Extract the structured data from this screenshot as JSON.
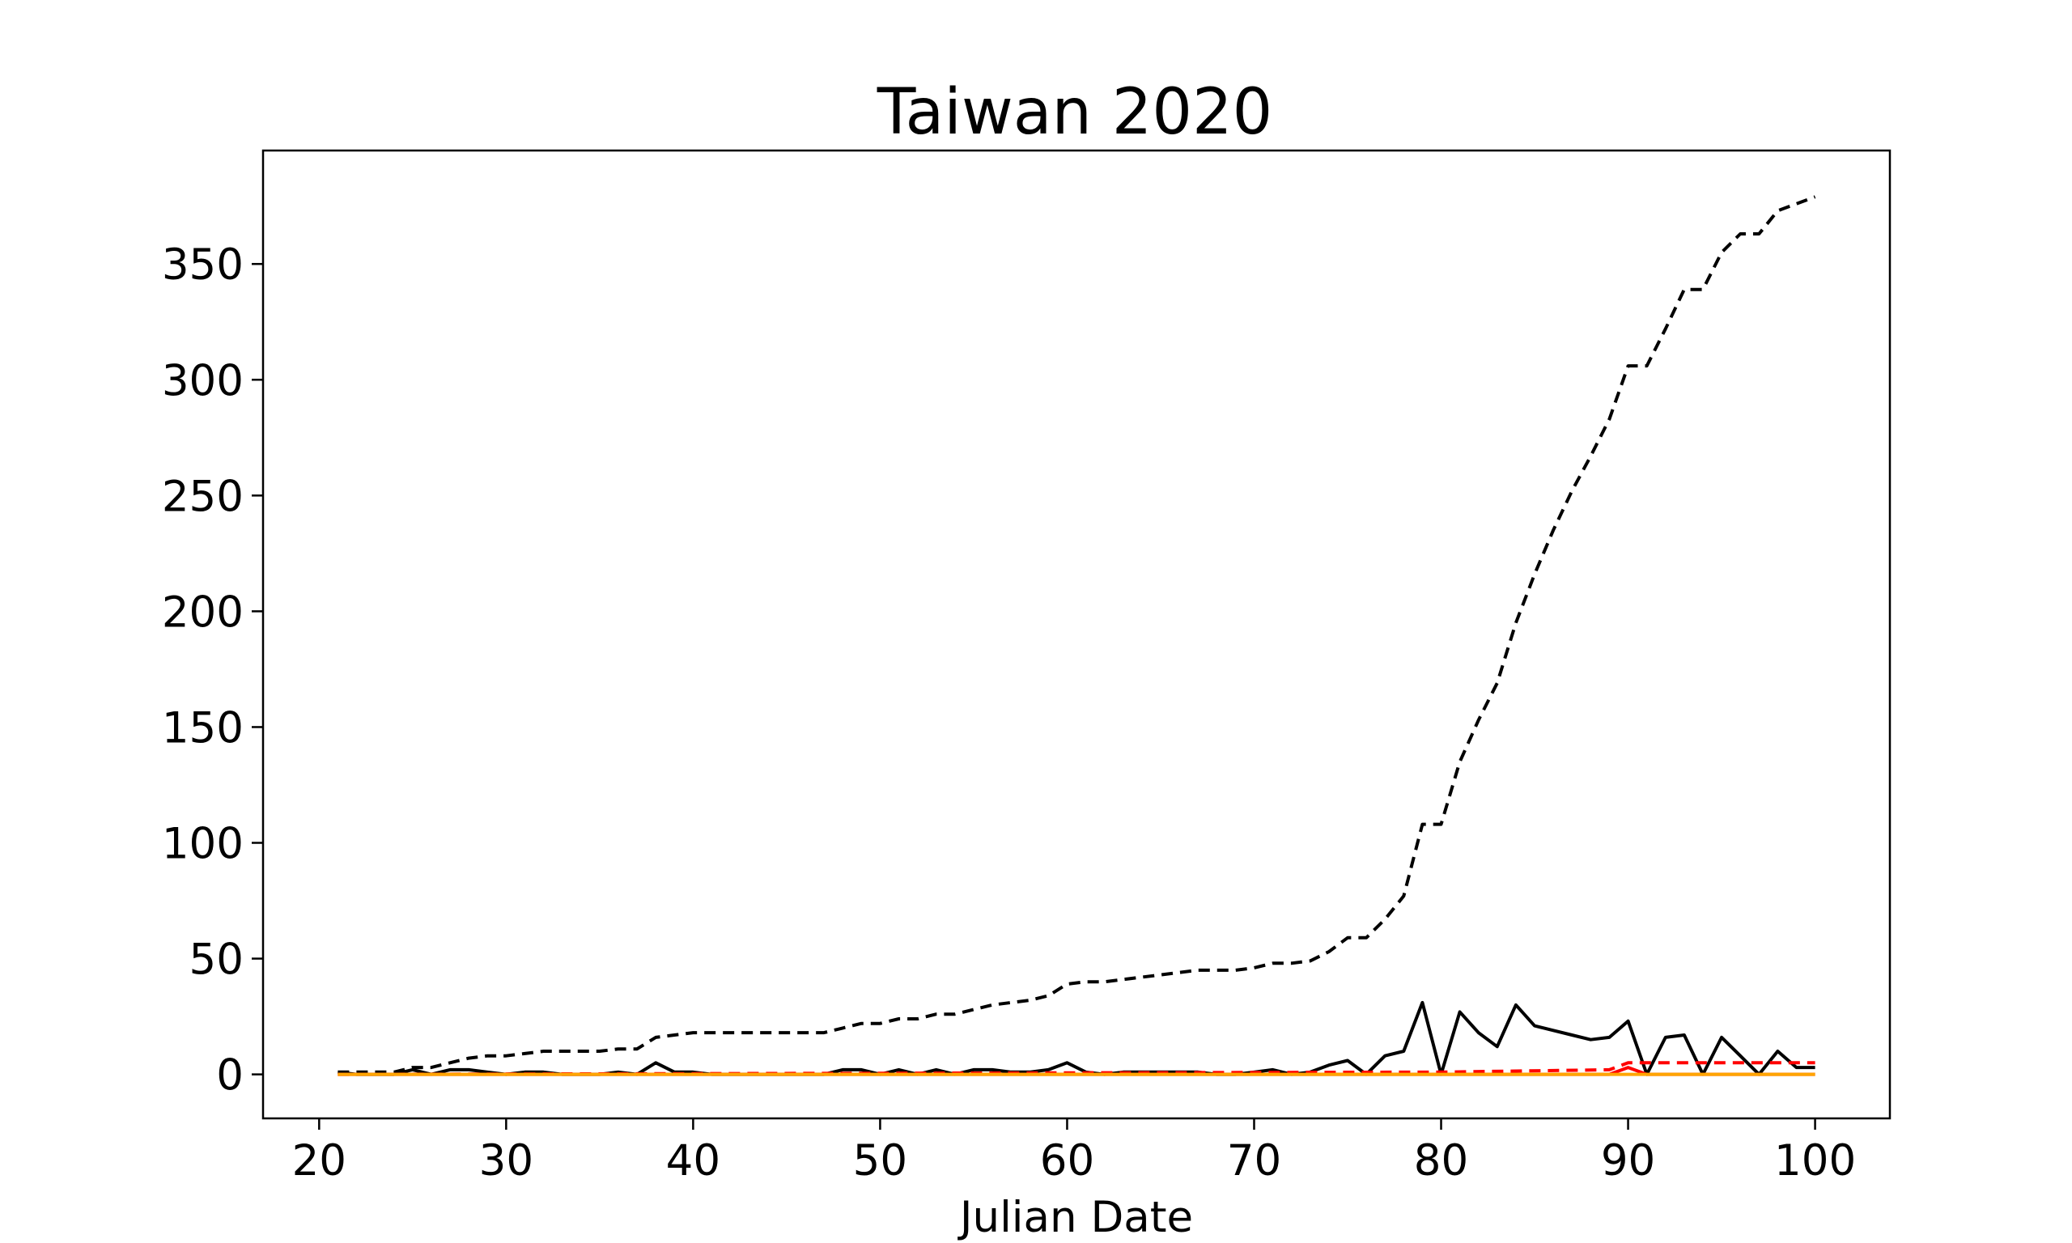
{
  "chart_data": {
    "type": "line",
    "title": "Taiwan 2020",
    "xlabel": "Julian Date",
    "ylabel": "",
    "xlim": [
      17,
      104
    ],
    "ylim": [
      -19,
      399
    ],
    "xticks": [
      20,
      30,
      40,
      50,
      60,
      70,
      80,
      90,
      100
    ],
    "yticks": [
      0,
      50,
      100,
      150,
      200,
      250,
      300,
      350
    ],
    "grid": false,
    "legend": "none",
    "series": [
      {
        "color": "#000000",
        "style": "dashed",
        "x": [
          21,
          22,
          23,
          24,
          25,
          26,
          27,
          28,
          29,
          30,
          31,
          32,
          33,
          34,
          35,
          36,
          37,
          38,
          39,
          40,
          41,
          42,
          43,
          44,
          45,
          46,
          47,
          48,
          49,
          50,
          51,
          52,
          53,
          54,
          55,
          56,
          57,
          58,
          59,
          60,
          61,
          62,
          63,
          64,
          65,
          66,
          67,
          68,
          69,
          70,
          71,
          72,
          73,
          74,
          75,
          76,
          77,
          78,
          79,
          80,
          81,
          82,
          83,
          84,
          85,
          86,
          87,
          88,
          89,
          90,
          91,
          92,
          93,
          94,
          95,
          96,
          97,
          98,
          99,
          100
        ],
        "y": [
          1,
          1,
          1,
          1,
          3,
          3,
          5,
          7,
          8,
          8,
          9,
          10,
          10,
          10,
          10,
          11,
          11,
          16,
          17,
          18,
          18,
          18,
          18,
          18,
          18,
          18,
          18,
          20,
          22,
          22,
          24,
          24,
          26,
          26,
          28,
          30,
          31,
          32,
          34,
          39,
          40,
          40,
          41,
          42,
          43,
          44,
          45,
          45,
          45,
          46,
          48,
          48,
          49,
          53,
          59,
          59,
          67,
          77,
          108,
          108,
          135,
          153,
          169,
          195,
          216,
          235,
          252,
          267,
          283,
          306,
          306,
          322,
          339,
          339,
          355,
          363,
          363,
          373,
          376,
          379
        ]
      },
      {
        "color": "#000000",
        "style": "solid",
        "x": [
          21,
          22,
          23,
          24,
          25,
          26,
          27,
          28,
          29,
          30,
          31,
          32,
          33,
          34,
          35,
          36,
          37,
          38,
          39,
          40,
          41,
          42,
          43,
          44,
          45,
          46,
          47,
          48,
          49,
          50,
          51,
          52,
          53,
          54,
          55,
          56,
          57,
          58,
          59,
          60,
          61,
          62,
          63,
          64,
          65,
          66,
          67,
          68,
          69,
          70,
          71,
          72,
          73,
          74,
          75,
          76,
          77,
          78,
          79,
          80,
          81,
          82,
          83,
          84,
          85,
          86,
          87,
          88,
          89,
          90,
          91,
          92,
          93,
          94,
          95,
          96,
          97,
          98,
          99,
          100
        ],
        "y": [
          1,
          0,
          0,
          0,
          2,
          0,
          2,
          2,
          1,
          0,
          1,
          1,
          0,
          0,
          0,
          1,
          0,
          5,
          1,
          1,
          0,
          0,
          0,
          0,
          0,
          0,
          0,
          2,
          2,
          0,
          2,
          0,
          2,
          0,
          2,
          2,
          1,
          1,
          2,
          5,
          1,
          0,
          1,
          1,
          1,
          1,
          1,
          0,
          0,
          1,
          2,
          0,
          1,
          4,
          6,
          0,
          8,
          10,
          31,
          0,
          27,
          18,
          12,
          30,
          21,
          19,
          17,
          15,
          16,
          23,
          0,
          16,
          17,
          0,
          16,
          8,
          0,
          10,
          3,
          3
        ]
      },
      {
        "color": "#ff0000",
        "style": "dashed",
        "x": [
          21,
          80,
          89,
          90,
          100
        ],
        "y": [
          0,
          1,
          2,
          5,
          5
        ]
      },
      {
        "color": "#ff0000",
        "style": "solid",
        "x": [
          21,
          89,
          90,
          91,
          100
        ],
        "y": [
          0,
          0,
          3,
          0,
          0
        ]
      },
      {
        "color": "#ffa500",
        "style": "solid",
        "x": [
          21,
          100
        ],
        "y": [
          0,
          0
        ]
      }
    ]
  }
}
